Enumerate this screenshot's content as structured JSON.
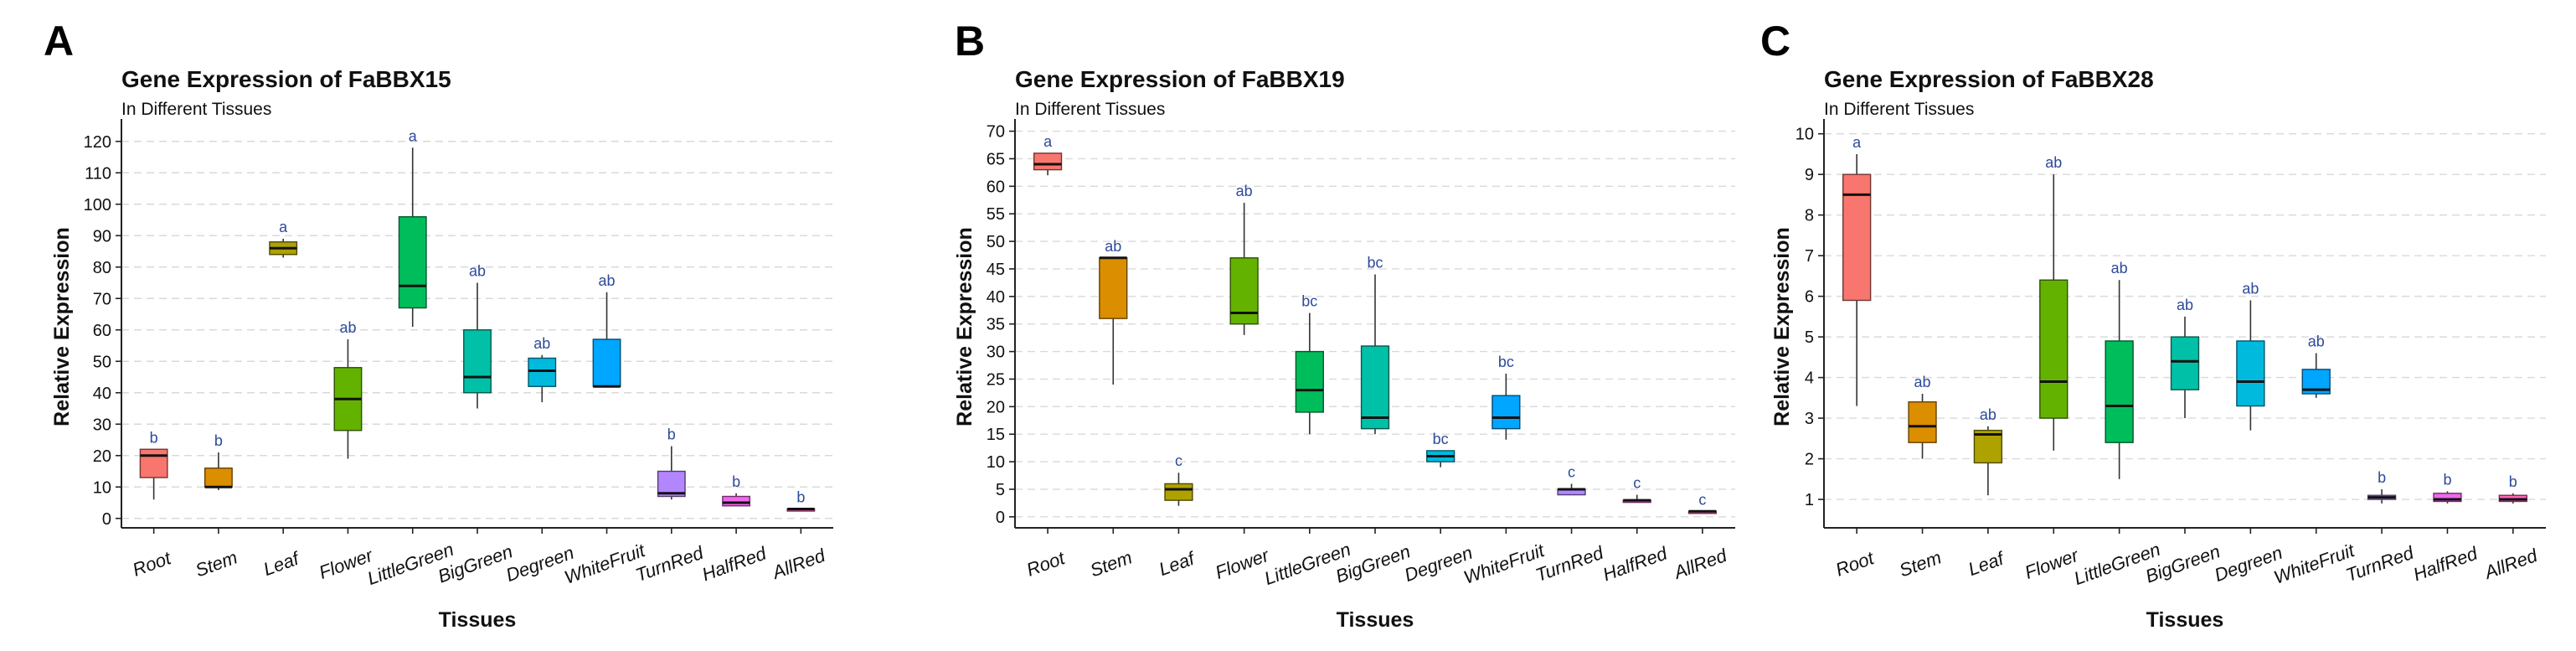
{
  "chart_data": [
    {
      "panel": "A",
      "type": "box",
      "title": "Gene Expression of FaBBX15",
      "subtitle": "In Different Tissues",
      "xlabel": "Tissues",
      "ylabel": "Relative Expression",
      "ylim": [
        -3,
        125
      ],
      "yticks": [
        0,
        10,
        20,
        30,
        40,
        50,
        60,
        70,
        80,
        90,
        100,
        110,
        120
      ],
      "grid": "horizontal dashed",
      "categories": [
        "Root",
        "Stem",
        "Leaf",
        "Flower",
        "LittleGreen",
        "BigGreen",
        "Degreen",
        "WhiteFruit",
        "TurnRed",
        "HalfRed",
        "AllRed"
      ],
      "colors": [
        "#f8766d",
        "#db8e00",
        "#aea200",
        "#64b200",
        "#00bd5c",
        "#00c1a7",
        "#00bade",
        "#00a6ff",
        "#b385ff",
        "#ef67eb",
        "#ff63b6"
      ],
      "boxes": [
        {
          "min": 6,
          "q1": 13,
          "median": 20,
          "q3": 22,
          "max": 22
        },
        {
          "min": 9,
          "q1": 10,
          "median": 10,
          "q3": 16,
          "max": 21
        },
        {
          "min": 83,
          "q1": 84,
          "median": 86,
          "q3": 88,
          "max": 89
        },
        {
          "min": 19,
          "q1": 28,
          "median": 38,
          "q3": 48,
          "max": 57
        },
        {
          "min": 61,
          "q1": 67,
          "median": 74,
          "q3": 96,
          "max": 118
        },
        {
          "min": 35,
          "q1": 40,
          "median": 45,
          "q3": 60,
          "max": 75
        },
        {
          "min": 37,
          "q1": 42,
          "median": 47,
          "q3": 51,
          "max": 52
        },
        {
          "min": 42,
          "q1": 42,
          "median": 42,
          "q3": 57,
          "max": 72
        },
        {
          "min": 6,
          "q1": 7,
          "median": 8,
          "q3": 15,
          "max": 23
        },
        {
          "min": 4,
          "q1": 4,
          "median": 5,
          "q3": 7,
          "max": 8
        },
        {
          "min": 3,
          "q1": 3,
          "median": 3,
          "q3": 3,
          "max": 3
        }
      ],
      "sig_labels": [
        "b",
        "b",
        "a",
        "ab",
        "a",
        "ab",
        "ab",
        "ab",
        "b",
        "b",
        "b"
      ]
    },
    {
      "panel": "B",
      "type": "box",
      "title": "Gene Expression of FaBBX19",
      "subtitle": "In Different Tissues",
      "xlabel": "Tissues",
      "ylabel": "Relative Expression",
      "ylim": [
        -2,
        71
      ],
      "yticks": [
        0,
        5,
        10,
        15,
        20,
        25,
        30,
        35,
        40,
        45,
        50,
        55,
        60,
        65,
        70
      ],
      "grid": "horizontal dashed",
      "categories": [
        "Root",
        "Stem",
        "Leaf",
        "Flower",
        "LittleGreen",
        "BigGreen",
        "Degreen",
        "WhiteFruit",
        "TurnRed",
        "HalfRed",
        "AllRed"
      ],
      "colors": [
        "#f8766d",
        "#db8e00",
        "#aea200",
        "#64b200",
        "#00bd5c",
        "#00c1a7",
        "#00bade",
        "#00a6ff",
        "#b385ff",
        "#ef67eb",
        "#ff63b6"
      ],
      "boxes": [
        {
          "min": 62,
          "q1": 63,
          "median": 64,
          "q3": 66,
          "max": 66
        },
        {
          "min": 24,
          "q1": 36,
          "median": 47,
          "q3": 47,
          "max": 47
        },
        {
          "min": 2,
          "q1": 3,
          "median": 5,
          "q3": 6,
          "max": 8
        },
        {
          "min": 33,
          "q1": 35,
          "median": 37,
          "q3": 47,
          "max": 57
        },
        {
          "min": 15,
          "q1": 19,
          "median": 23,
          "q3": 30,
          "max": 37
        },
        {
          "min": 15,
          "q1": 16,
          "median": 18,
          "q3": 31,
          "max": 44
        },
        {
          "min": 9,
          "q1": 10,
          "median": 11,
          "q3": 12,
          "max": 12
        },
        {
          "min": 14,
          "q1": 16,
          "median": 18,
          "q3": 22,
          "max": 26
        },
        {
          "min": 4,
          "q1": 4,
          "median": 5,
          "q3": 5,
          "max": 6
        },
        {
          "min": 3,
          "q1": 3,
          "median": 3,
          "q3": 3,
          "max": 4
        },
        {
          "min": 1,
          "q1": 1,
          "median": 1,
          "q3": 1,
          "max": 1
        }
      ],
      "sig_labels": [
        "a",
        "ab",
        "c",
        "ab",
        "bc",
        "bc",
        "bc",
        "bc",
        "c",
        "c",
        "c"
      ]
    },
    {
      "panel": "C",
      "type": "box",
      "title": "Gene Expression of FaBBX28",
      "subtitle": "In Different Tissues",
      "xlabel": "Tissues",
      "ylabel": "Relative Expression",
      "ylim": [
        0.3,
        10.2
      ],
      "yticks": [
        1,
        2,
        3,
        4,
        5,
        6,
        7,
        8,
        9,
        10
      ],
      "grid": "horizontal dashed",
      "categories": [
        "Root",
        "Stem",
        "Leaf",
        "Flower",
        "LittleGreen",
        "BigGreen",
        "Degreen",
        "WhiteFruit",
        "TurnRed",
        "HalfRed",
        "AllRed"
      ],
      "colors": [
        "#f8766d",
        "#db8e00",
        "#aea200",
        "#64b200",
        "#00bd5c",
        "#00c1a7",
        "#00bade",
        "#00a6ff",
        "#b385ff",
        "#ef67eb",
        "#ff63b6"
      ],
      "boxes": [
        {
          "min": 3.3,
          "q1": 5.9,
          "median": 8.5,
          "q3": 9.0,
          "max": 9.5
        },
        {
          "min": 2.0,
          "q1": 2.4,
          "median": 2.8,
          "q3": 3.4,
          "max": 3.6
        },
        {
          "min": 1.1,
          "q1": 1.9,
          "median": 2.6,
          "q3": 2.7,
          "max": 2.8
        },
        {
          "min": 2.2,
          "q1": 3.0,
          "median": 3.9,
          "q3": 6.4,
          "max": 9.0
        },
        {
          "min": 1.5,
          "q1": 2.4,
          "median": 3.3,
          "q3": 4.9,
          "max": 6.4
        },
        {
          "min": 3.0,
          "q1": 3.7,
          "median": 4.4,
          "q3": 5.0,
          "max": 5.5
        },
        {
          "min": 2.7,
          "q1": 3.3,
          "median": 3.9,
          "q3": 4.9,
          "max": 5.9
        },
        {
          "min": 3.5,
          "q1": 3.6,
          "median": 3.7,
          "q3": 4.2,
          "max": 4.6
        },
        {
          "min": 0.9,
          "q1": 1.0,
          "median": 1.05,
          "q3": 1.1,
          "max": 1.25
        },
        {
          "min": 0.9,
          "q1": 0.95,
          "median": 1.0,
          "q3": 1.15,
          "max": 1.2
        },
        {
          "min": 0.9,
          "q1": 0.95,
          "median": 1.0,
          "q3": 1.1,
          "max": 1.15
        }
      ],
      "sig_labels": [
        "a",
        "ab",
        "ab",
        "ab",
        "ab",
        "ab",
        "ab",
        "ab",
        "b",
        "b",
        "b"
      ]
    }
  ]
}
